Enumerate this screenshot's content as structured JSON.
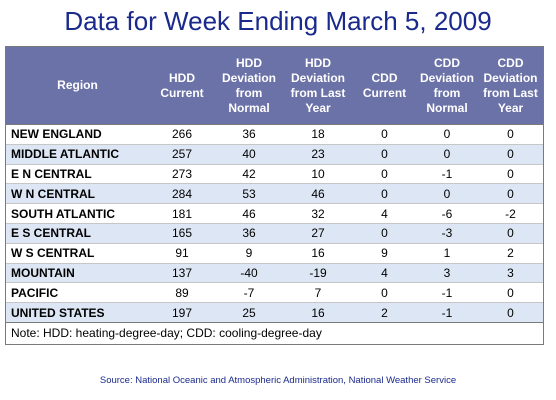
{
  "title": "Data for Week Ending March 5, 2009",
  "chart_data": {
    "type": "table",
    "columns": [
      "Region",
      "HDD Current",
      "HDD Deviation from Normal",
      "HDD Deviation from Last Year",
      "CDD Current",
      "CDD Deviation from Normal",
      "CDD Deviation from Last Year"
    ],
    "rows": [
      [
        "NEW ENGLAND",
        266,
        36,
        18,
        0,
        0,
        0
      ],
      [
        "MIDDLE ATLANTIC",
        257,
        40,
        23,
        0,
        0,
        0
      ],
      [
        "E N CENTRAL",
        273,
        42,
        10,
        0,
        -1,
        0
      ],
      [
        "W N CENTRAL",
        284,
        53,
        46,
        0,
        0,
        0
      ],
      [
        "SOUTH ATLANTIC",
        181,
        46,
        32,
        4,
        -6,
        -2
      ],
      [
        "E S CENTRAL",
        165,
        36,
        27,
        0,
        -3,
        0
      ],
      [
        "W S CENTRAL",
        91,
        9,
        16,
        9,
        1,
        2
      ],
      [
        "MOUNTAIN",
        137,
        -40,
        -19,
        4,
        3,
        3
      ],
      [
        "PACIFIC",
        89,
        -7,
        7,
        0,
        -1,
        0
      ],
      [
        "UNITED STATES",
        197,
        25,
        16,
        2,
        -1,
        0
      ]
    ]
  },
  "note": "Note: HDD: heating-degree-day; CDD: cooling-degree-day",
  "source": "Source:  National Oceanic and Atmospheric Administration, National Weather Service",
  "colors": {
    "title": "#1a2a8c",
    "header_bg": "#6b72a8",
    "row_stripe": "#dde6f4"
  }
}
